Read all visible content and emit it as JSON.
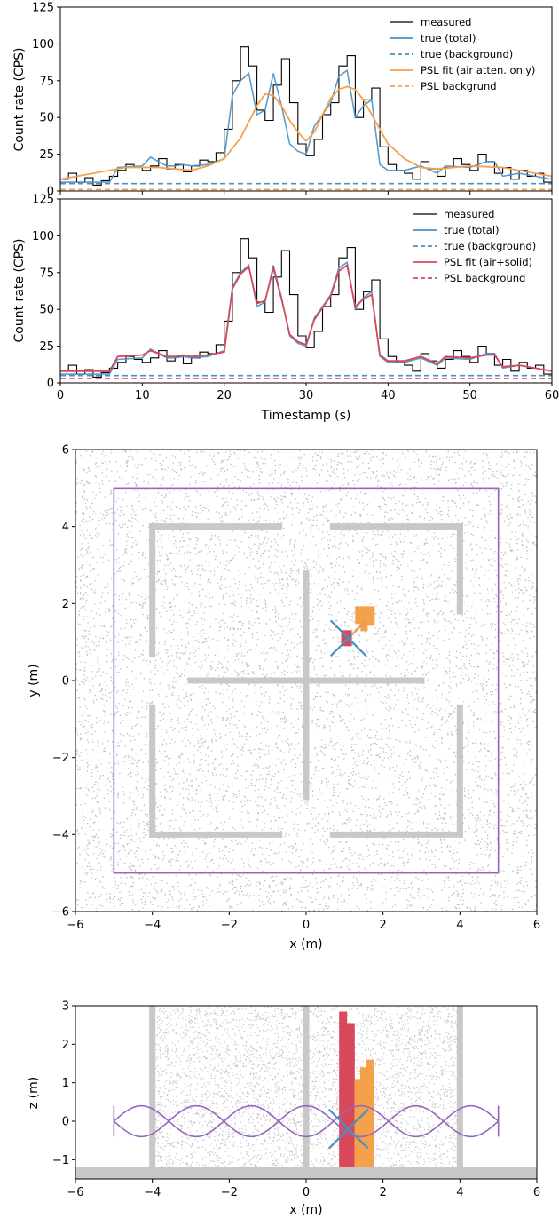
{
  "chart_data": [
    {
      "type": "line",
      "id": "top",
      "ylabel": "Count rate (CPS)",
      "xlabel": "",
      "xlim": [
        0,
        60
      ],
      "ylim": [
        0,
        125
      ],
      "xticks": [
        "0",
        "10",
        "20",
        "30",
        "40",
        "50",
        "60"
      ],
      "yticks": [
        "0",
        "25",
        "50",
        "75",
        "100",
        "125"
      ],
      "legend": {
        "placement": "top-right",
        "entries": [
          "measured",
          "true (total)",
          "true (background)",
          "PSL fit (air atten. only)",
          "PSL backgrund"
        ]
      },
      "colors": {
        "measured": "#000000",
        "true": "#4a90c4",
        "fit": "#f5a04a"
      },
      "series": [
        {
          "name": "measured",
          "x": [
            0,
            1,
            2,
            3,
            4,
            5,
            6,
            7,
            8,
            9,
            10,
            11,
            12,
            13,
            14,
            15,
            16,
            17,
            18,
            19,
            20,
            21,
            22,
            23,
            24,
            25,
            26,
            27,
            28,
            29,
            30,
            31,
            32,
            33,
            34,
            35,
            36,
            37,
            38,
            39,
            40,
            41,
            42,
            43,
            44,
            45,
            46,
            47,
            48,
            49,
            50,
            51,
            52,
            53,
            54,
            55,
            56,
            57,
            58,
            59
          ],
          "y": [
            8,
            12,
            6,
            9,
            4,
            7,
            10,
            14,
            18,
            16,
            14,
            17,
            22,
            15,
            18,
            13,
            17,
            21,
            20,
            26,
            42,
            75,
            98,
            85,
            55,
            48,
            72,
            90,
            60,
            32,
            24,
            35,
            52,
            60,
            85,
            92,
            50,
            62,
            70,
            30,
            18,
            14,
            12,
            8,
            20,
            15,
            10,
            16,
            22,
            18,
            14,
            25,
            20,
            12,
            16,
            8,
            14,
            10,
            12,
            6
          ]
        },
        {
          "name": "true (total)",
          "x": [
            0,
            6,
            7,
            10,
            11,
            12,
            13,
            14,
            15,
            16,
            18,
            20,
            21,
            22,
            23,
            24,
            25,
            26,
            27,
            28,
            29,
            30,
            31,
            32,
            33,
            34,
            35,
            36,
            37,
            38,
            39,
            40,
            42,
            44,
            46,
            47,
            50,
            52,
            53,
            54,
            56,
            58,
            60
          ],
          "y": [
            6,
            6,
            16,
            17,
            23,
            20,
            17,
            17,
            18,
            17,
            18,
            22,
            65,
            75,
            80,
            52,
            55,
            80,
            58,
            32,
            27,
            25,
            44,
            52,
            60,
            78,
            82,
            50,
            58,
            62,
            18,
            14,
            14,
            17,
            12,
            17,
            16,
            20,
            20,
            10,
            12,
            10,
            8
          ]
        },
        {
          "name": "true (background)",
          "x": [
            0,
            60
          ],
          "y": [
            5,
            5
          ]
        },
        {
          "name": "PSL fit (air atten. only)",
          "x": [
            0,
            4,
            8,
            12,
            16,
            18,
            20,
            22,
            24,
            25,
            26,
            27,
            28,
            29,
            30,
            31,
            32,
            33,
            34,
            35,
            36,
            37,
            38,
            39,
            40,
            42,
            44,
            46,
            50,
            54,
            58,
            60
          ],
          "y": [
            8,
            12,
            16,
            16,
            14,
            17,
            22,
            36,
            58,
            66,
            65,
            58,
            48,
            40,
            34,
            40,
            52,
            63,
            69,
            71,
            69,
            62,
            52,
            42,
            32,
            22,
            16,
            15,
            17,
            16,
            12,
            10
          ]
        },
        {
          "name": "PSL backgrund",
          "x": [
            0,
            60
          ],
          "y": [
            1,
            1
          ]
        }
      ]
    },
    {
      "type": "line",
      "id": "bottom",
      "ylabel": "Count rate (CPS)",
      "xlabel": "Timestamp (s)",
      "xlim": [
        0,
        60
      ],
      "ylim": [
        0,
        125
      ],
      "xticks": [
        "0",
        "10",
        "20",
        "30",
        "40",
        "50",
        "60"
      ],
      "yticks": [
        "0",
        "25",
        "50",
        "75",
        "100",
        "125"
      ],
      "legend": {
        "placement": "top-right",
        "entries": [
          "measured",
          "true (total)",
          "true (background)",
          "PSL fit (air+solid)",
          "PSL background"
        ]
      },
      "colors": {
        "measured": "#000000",
        "true": "#4a90c4",
        "fit": "#d9485a"
      },
      "series": [
        {
          "name": "measured",
          "x": [
            0,
            1,
            2,
            3,
            4,
            5,
            6,
            7,
            8,
            9,
            10,
            11,
            12,
            13,
            14,
            15,
            16,
            17,
            18,
            19,
            20,
            21,
            22,
            23,
            24,
            25,
            26,
            27,
            28,
            29,
            30,
            31,
            32,
            33,
            34,
            35,
            36,
            37,
            38,
            39,
            40,
            41,
            42,
            43,
            44,
            45,
            46,
            47,
            48,
            49,
            50,
            51,
            52,
            53,
            54,
            55,
            56,
            57,
            58,
            59
          ],
          "y": [
            8,
            12,
            6,
            9,
            4,
            7,
            10,
            14,
            18,
            16,
            14,
            17,
            22,
            15,
            18,
            13,
            17,
            21,
            20,
            26,
            42,
            75,
            98,
            85,
            55,
            48,
            72,
            90,
            60,
            32,
            24,
            35,
            52,
            60,
            85,
            92,
            50,
            62,
            70,
            30,
            18,
            14,
            12,
            8,
            20,
            15,
            10,
            16,
            22,
            18,
            14,
            25,
            20,
            12,
            16,
            8,
            14,
            10,
            12,
            6
          ]
        },
        {
          "name": "true (total)",
          "x": [
            0,
            6,
            7,
            10,
            11,
            12,
            13,
            14,
            15,
            16,
            18,
            20,
            21,
            22,
            23,
            24,
            25,
            26,
            27,
            28,
            29,
            30,
            31,
            32,
            33,
            34,
            35,
            36,
            37,
            38,
            39,
            40,
            42,
            44,
            46,
            47,
            50,
            52,
            53,
            54,
            56,
            58,
            60
          ],
          "y": [
            6,
            6,
            16,
            17,
            23,
            20,
            17,
            17,
            18,
            17,
            18,
            22,
            65,
            75,
            80,
            52,
            55,
            80,
            58,
            32,
            27,
            25,
            44,
            52,
            60,
            78,
            82,
            50,
            58,
            62,
            18,
            14,
            14,
            17,
            12,
            17,
            16,
            20,
            20,
            10,
            12,
            10,
            8
          ]
        },
        {
          "name": "true (background)",
          "x": [
            0,
            60
          ],
          "y": [
            5,
            5
          ]
        },
        {
          "name": "PSL fit (air+solid)",
          "x": [
            0,
            6,
            7,
            10,
            11,
            12,
            13,
            14,
            15,
            16,
            18,
            20,
            21,
            22,
            23,
            24,
            25,
            26,
            27,
            28,
            29,
            30,
            31,
            32,
            33,
            34,
            35,
            36,
            37,
            38,
            39,
            40,
            42,
            44,
            46,
            47,
            50,
            52,
            53,
            54,
            56,
            58,
            60
          ],
          "y": [
            8,
            8,
            18,
            19,
            22,
            20,
            18,
            18,
            19,
            18,
            19,
            21,
            64,
            74,
            79,
            54,
            56,
            78,
            57,
            33,
            28,
            26,
            43,
            51,
            59,
            76,
            80,
            52,
            57,
            60,
            19,
            15,
            15,
            18,
            13,
            18,
            17,
            19,
            19,
            11,
            12,
            10,
            8
          ]
        },
        {
          "name": "PSL background",
          "x": [
            0,
            60
          ],
          "y": [
            3,
            3
          ]
        }
      ]
    },
    {
      "type": "scatter",
      "id": "xy",
      "xlabel": "x (m)",
      "ylabel": "y (m)",
      "xlim": [
        -6,
        6
      ],
      "ylim": [
        -6,
        6
      ],
      "xticks": [
        "−6",
        "−4",
        "−2",
        "0",
        "2",
        "4",
        "6"
      ],
      "yticks": [
        "−6",
        "−4",
        "−2",
        "0",
        "2",
        "4",
        "6"
      ],
      "colors": {
        "points": "#b0b0b0",
        "walls": "#c8c8c8",
        "path": "#9467bd",
        "source_red": "#d9485a",
        "source_orange": "#f5a04a",
        "cross": "#4a90c4"
      },
      "path_rect": [
        -5,
        -5,
        5,
        5
      ],
      "walls": [
        [
          -4,
          4,
          -0.7,
          4
        ],
        [
          0.7,
          4,
          4,
          4
        ],
        [
          -4,
          0.7,
          -4,
          4
        ],
        [
          4,
          1.8,
          4,
          4
        ],
        [
          -4,
          -4,
          -0.7,
          -4
        ],
        [
          0.7,
          -4,
          4,
          -4
        ],
        [
          -4,
          -4,
          -4,
          -0.7
        ],
        [
          4,
          -4,
          4,
          -0.7
        ],
        [
          -3,
          0,
          3,
          0
        ],
        [
          0,
          -3,
          0,
          2.8
        ]
      ],
      "red_source": {
        "x": 1.05,
        "y": 1.1
      },
      "orange_source": {
        "x": 1.6,
        "y": 1.7
      },
      "cross_center": {
        "x": 1.1,
        "y": 1.1
      }
    },
    {
      "type": "scatter",
      "id": "xz",
      "xlabel": "x (m)",
      "ylabel": "z (m)",
      "xlim": [
        -6,
        6
      ],
      "ylim": [
        -1.5,
        3
      ],
      "xticks": [
        "−6",
        "−4",
        "−2",
        "0",
        "2",
        "4",
        "6"
      ],
      "yticks": [
        "−1",
        "0",
        "1",
        "2",
        "3"
      ],
      "colors": {
        "points": "#b0b0b0",
        "walls": "#c8c8c8",
        "path": "#9467bd",
        "source_red": "#d9485a",
        "source_orange": "#f5a04a",
        "cross": "#4a90c4"
      },
      "path_x_range": [
        -5,
        5
      ],
      "path_amplitude": 0.4,
      "path_cycles": 7,
      "wall_x": [
        -4,
        0,
        4
      ],
      "floor_z": -1.2,
      "red_bars": [
        [
          0.95,
          2.85
        ],
        [
          1.15,
          2.55
        ]
      ],
      "orange_bars": [
        [
          1.35,
          1.1
        ],
        [
          1.5,
          1.4
        ],
        [
          1.65,
          1.6
        ]
      ],
      "cross_center": {
        "x": 1.1,
        "z": -0.2
      }
    }
  ]
}
